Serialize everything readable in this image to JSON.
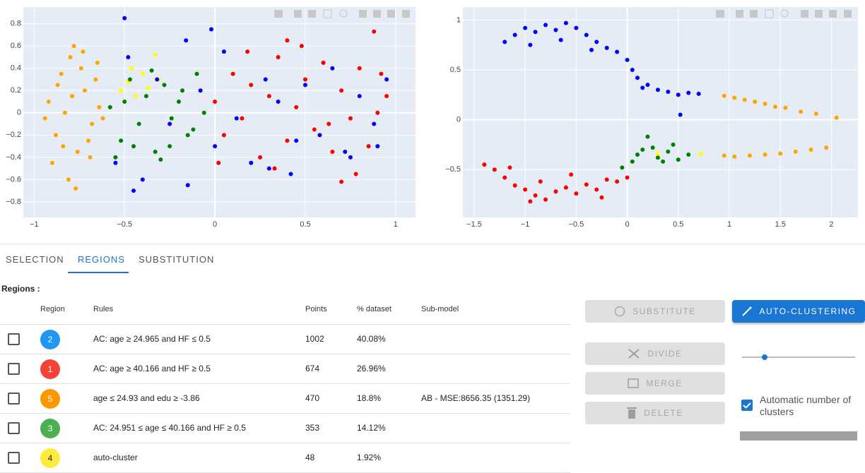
{
  "chart_data": [
    {
      "type": "scatter",
      "xlim": [
        -1.06,
        1.11
      ],
      "ylim": [
        -0.94,
        0.95
      ],
      "xticks": [
        {
          "value": -1,
          "label": "−1"
        },
        {
          "value": -0.5,
          "label": "−0.5"
        },
        0,
        0.5,
        1
      ],
      "yticks": [
        {
          "value": -0.8,
          "label": "−0.8"
        },
        {
          "value": -0.6,
          "label": "−0.6"
        },
        {
          "value": -0.4,
          "label": "−0.4"
        },
        {
          "value": -0.2,
          "label": "−0.2"
        },
        0,
        0.2,
        0.4,
        0.6,
        0.8
      ],
      "grid": true,
      "series": [
        {
          "color": "#ffa500",
          "x": [
            -0.92,
            -0.88,
            -0.85,
            -0.8,
            -0.76,
            -0.72,
            -0.68,
            -0.64,
            -0.9,
            -0.83,
            -0.78,
            -0.7,
            -0.66,
            -0.62,
            -0.87,
            -0.81,
            -0.74,
            -0.69,
            -0.94,
            -0.79,
            -0.84,
            -0.73,
            -0.77,
            -0.65
          ],
          "values": [
            0.1,
            -0.2,
            0.35,
            0.5,
            -0.35,
            0.2,
            -0.1,
            0.05,
            -0.45,
            0.0,
            0.6,
            -0.25,
            0.3,
            -0.05,
            0.25,
            -0.6,
            0.4,
            -0.4,
            -0.05,
            0.15,
            -0.3,
            0.55,
            -0.68,
            0.45
          ]
        },
        {
          "color": "#ffff00",
          "x": [
            -0.52,
            -0.48,
            -0.44,
            -0.4,
            -0.37,
            -0.33,
            -0.46,
            -0.31
          ],
          "values": [
            0.2,
            0.28,
            0.15,
            0.35,
            0.22,
            0.52,
            0.4,
            0.3
          ]
        },
        {
          "color": "#008000",
          "x": [
            -0.58,
            -0.52,
            -0.47,
            -0.42,
            -0.38,
            -0.33,
            -0.28,
            -0.24,
            -0.2,
            -0.15,
            -0.1,
            -0.06,
            -0.55,
            -0.45,
            -0.35,
            -0.25,
            -0.18,
            -0.12,
            -0.5,
            -0.3
          ],
          "values": [
            0.05,
            -0.25,
            0.3,
            -0.1,
            0.15,
            -0.35,
            0.25,
            -0.05,
            0.1,
            -0.2,
            0.35,
            0.0,
            -0.4,
            -0.3,
            0.38,
            -0.3,
            0.2,
            -0.15,
            0.1,
            -0.42
          ]
        },
        {
          "color": "#0000ff",
          "x": [
            -0.55,
            -0.48,
            -0.4,
            -0.32,
            -0.25,
            -0.16,
            -0.08,
            0.0,
            0.05,
            0.12,
            0.2,
            0.28,
            0.35,
            0.42,
            0.5,
            0.58,
            0.65,
            0.72,
            0.8,
            0.88,
            0.95,
            -0.5,
            -0.45,
            -0.15,
            0.3,
            0.6,
            0.9,
            -0.02,
            0.45,
            0.75
          ],
          "values": [
            -0.45,
            0.5,
            -0.6,
            0.3,
            -0.1,
            0.65,
            0.2,
            -0.3,
            0.55,
            -0.05,
            -0.45,
            0.3,
            0.1,
            -0.55,
            0.25,
            -0.2,
            0.4,
            -0.35,
            0.15,
            -0.1,
            0.3,
            0.85,
            -0.7,
            -0.65,
            -0.5,
            0.45,
            -0.3,
            0.75,
            -0.25,
            -0.4
          ]
        },
        {
          "color": "#ff0000",
          "x": [
            0.0,
            0.05,
            0.1,
            0.15,
            0.2,
            0.25,
            0.3,
            0.35,
            0.4,
            0.45,
            0.5,
            0.55,
            0.6,
            0.65,
            0.7,
            0.75,
            0.8,
            0.85,
            0.9,
            0.95,
            0.02,
            0.18,
            0.33,
            0.48,
            0.63,
            0.78,
            0.92,
            0.88,
            0.4,
            0.7
          ],
          "values": [
            0.1,
            -0.2,
            0.35,
            -0.05,
            0.25,
            -0.4,
            0.15,
            0.5,
            -0.25,
            0.05,
            0.3,
            -0.15,
            0.45,
            -0.35,
            0.2,
            -0.05,
            0.4,
            -0.3,
            0.0,
            0.15,
            -0.45,
            0.55,
            -0.5,
            0.6,
            -0.1,
            -0.55,
            0.35,
            0.73,
            0.65,
            -0.62
          ]
        }
      ]
    },
    {
      "type": "scatter",
      "xlim": [
        -1.61,
        2.26
      ],
      "ylim": [
        -0.98,
        1.13
      ],
      "xticks": [
        {
          "value": -1.5,
          "label": "−1.5"
        },
        {
          "value": -1,
          "label": "−1"
        },
        {
          "value": -0.5,
          "label": "−0.5"
        },
        0,
        0.5,
        1,
        1.5,
        2
      ],
      "yticks": [
        {
          "value": -0.5,
          "label": "−0.5"
        },
        0,
        0.5,
        1
      ],
      "grid": true,
      "series": [
        {
          "color": "#0000ff",
          "x": [
            -1.2,
            -1.1,
            -1.0,
            -0.9,
            -0.8,
            -0.7,
            -0.6,
            -0.5,
            -0.4,
            -0.3,
            -0.2,
            -0.1,
            0.0,
            0.1,
            0.2,
            0.3,
            0.4,
            0.5,
            0.6,
            0.7,
            -0.95,
            -0.65,
            -0.35,
            0.05,
            0.15,
            0.52
          ],
          "values": [
            0.78,
            0.85,
            0.92,
            0.88,
            0.95,
            0.9,
            0.97,
            0.92,
            0.85,
            0.78,
            0.72,
            0.68,
            0.6,
            0.42,
            0.35,
            0.3,
            0.28,
            0.25,
            0.27,
            0.26,
            0.75,
            0.8,
            0.7,
            0.5,
            0.32,
            0.05
          ]
        },
        {
          "color": "#ffa500",
          "x": [
            0.95,
            1.05,
            1.15,
            1.25,
            1.35,
            1.45,
            1.55,
            1.7,
            1.85,
            2.05,
            0.95,
            1.05,
            1.2,
            1.35,
            1.5,
            1.65,
            1.8,
            1.95
          ],
          "values": [
            0.24,
            0.22,
            0.2,
            0.18,
            0.16,
            0.13,
            0.12,
            0.08,
            0.06,
            0.02,
            -0.36,
            -0.37,
            -0.36,
            -0.35,
            -0.34,
            -0.32,
            -0.3,
            -0.28
          ]
        },
        {
          "color": "#008000",
          "x": [
            -0.05,
            0.05,
            0.1,
            0.15,
            0.25,
            0.3,
            0.4,
            0.45,
            0.5,
            0.6,
            0.2,
            0.35
          ],
          "values": [
            -0.48,
            -0.42,
            -0.35,
            -0.3,
            -0.28,
            -0.38,
            -0.32,
            -0.25,
            -0.4,
            -0.35,
            -0.17,
            -0.42
          ]
        },
        {
          "color": "#ff0000",
          "x": [
            -1.4,
            -1.3,
            -1.2,
            -1.1,
            -1.0,
            -0.9,
            -0.8,
            -0.7,
            -0.6,
            -0.5,
            -0.4,
            -0.3,
            -0.2,
            -0.1,
            0.0,
            -1.15,
            -0.85,
            -0.55,
            -0.25,
            -0.95
          ],
          "values": [
            -0.45,
            -0.5,
            -0.58,
            -0.66,
            -0.7,
            -0.76,
            -0.8,
            -0.72,
            -0.68,
            -0.74,
            -0.65,
            -0.7,
            -0.6,
            -0.62,
            -0.58,
            -0.48,
            -0.62,
            -0.55,
            -0.78,
            -0.82
          ]
        },
        {
          "color": "#ffff00",
          "x": [
            0.3,
            0.72
          ],
          "values": [
            -0.34,
            -0.34
          ]
        }
      ]
    }
  ],
  "tabs": [
    "SELECTION",
    "REGIONS",
    "SUBSTITUTION"
  ],
  "active_tab": 1,
  "regions": {
    "title": "Regions :",
    "columns": [
      "Region",
      "Rules",
      "Points",
      "% dataset",
      "Sub-model"
    ],
    "rows": [
      {
        "region": 2,
        "color": "#2196f3",
        "rules": "AC: age ≥ 24.965 and HF ≤ 0.5",
        "points": 1002,
        "percent": "40.08%"
      },
      {
        "region": 1,
        "color": "#f44336",
        "rules": "AC: age ≥ 40.166 and HF ≥ 0.5",
        "points": 674,
        "percent": "26.96%"
      },
      {
        "region": 5,
        "color": "#ff9800",
        "rules": "age ≤ 24.93 and edu ≥ -3.86",
        "points": 470,
        "percent": "18.8%",
        "submodel": "AB - MSE:8656.35 (1351.29)"
      },
      {
        "region": 3,
        "color": "#4caf50",
        "rules": "AC: 24.951 ≤ age ≤ 40.166 and HF ≥ 0.5",
        "points": 353,
        "percent": "14.12%"
      },
      {
        "region": 4,
        "color": "#ffeb3b",
        "rules": "auto-cluster",
        "points": 48,
        "percent": "1.92%"
      }
    ]
  },
  "buttons": {
    "substitute": "SUBSTITUTE",
    "auto": "AUTO-CLUSTERING",
    "divide": "DIVIDE",
    "merge": "MERGE",
    "delete": "DELETE"
  },
  "checkbox_label": "Automatic number of clusters"
}
